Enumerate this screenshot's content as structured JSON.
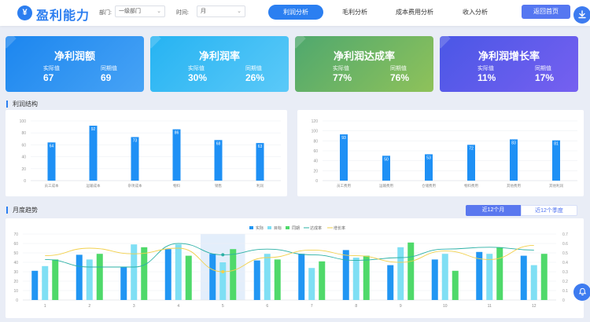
{
  "header": {
    "logo_glyph": "¥",
    "app_title": "盈利能力",
    "dept_label": "部门:",
    "dept_value": "一级部门",
    "time_label": "时间:",
    "time_value": "月",
    "nav": [
      {
        "label": "利润分析",
        "active": true
      },
      {
        "label": "毛利分析",
        "active": false
      },
      {
        "label": "成本费用分析",
        "active": false
      },
      {
        "label": "收入分析",
        "active": false
      }
    ],
    "home_label": "返回首页",
    "download_icon": "download-icon"
  },
  "kpis": [
    {
      "title": "净利润额",
      "actual_label": "实际值",
      "actual": "67",
      "prev_label": "同期值",
      "prev": "69",
      "color_from": "#1c86ef",
      "color_to": "#47a3f5"
    },
    {
      "title": "净利润率",
      "actual_label": "实际值",
      "actual": "30%",
      "prev_label": "同期值",
      "prev": "26%",
      "color_from": "#26b3f2",
      "color_to": "#5bc9f8"
    },
    {
      "title": "净利润达成率",
      "actual_label": "实际值",
      "actual": "77%",
      "prev_label": "同期值",
      "prev": "76%",
      "color_from": "#4fa86e",
      "color_to": "#8fc25a"
    },
    {
      "title": "净利润增长率",
      "actual_label": "实际值",
      "actual": "11%",
      "prev_label": "同期值",
      "prev": "17%",
      "color_from": "#4a57e6",
      "color_to": "#7660f0"
    }
  ],
  "profit_structure": {
    "title": "利润结构"
  },
  "monthly": {
    "title": "月度趋势",
    "tab_active": "近12个月",
    "tab_inactive": "近12个季度"
  },
  "colors": {
    "primary": "#2b7ff1",
    "bar": "#1e90f5",
    "actual": "#2196f3",
    "target": "#7fdff4",
    "prev": "#4fd96a",
    "line_rate": "#2bb0a5",
    "line_growth": "#f2d04b"
  },
  "chart_data": [
    {
      "type": "bar",
      "categories": [
        "员工成本",
        "运输成本",
        "杂项成本",
        "物料",
        "销售",
        "利润"
      ],
      "values": [
        64,
        92,
        73,
        86,
        68,
        63
      ],
      "ylim": [
        0,
        100
      ],
      "yticks": [
        0,
        20,
        40,
        60,
        80,
        100
      ],
      "grid": true
    },
    {
      "type": "bar",
      "categories": [
        "员工费用",
        "运输费用",
        "仓储费用",
        "物料费用",
        "其他费用",
        "其他利润"
      ],
      "values": [
        93,
        50,
        53,
        72,
        83,
        81
      ],
      "ylim": [
        0,
        120
      ],
      "yticks": [
        0,
        20,
        40,
        60,
        80,
        100,
        120
      ],
      "grid": true
    },
    {
      "type": "bar",
      "categories": [
        "1",
        "2",
        "3",
        "4",
        "5",
        "6",
        "7",
        "8",
        "9",
        "10",
        "11",
        "12"
      ],
      "series": [
        {
          "name": "实际",
          "values": [
            31,
            48,
            35,
            54,
            49,
            42,
            49,
            53,
            37,
            43,
            51,
            47
          ]
        },
        {
          "name": "目标",
          "values": [
            36,
            43,
            59,
            59,
            40,
            49,
            34,
            45,
            56,
            49,
            49,
            37
          ]
        },
        {
          "name": "同期",
          "values": [
            43,
            49,
            56,
            47,
            54,
            43,
            41,
            47,
            61,
            31,
            56,
            49
          ]
        }
      ],
      "lines": [
        {
          "name": "达成率",
          "axis": "right",
          "values": [
            0.43,
            0.35,
            0.35,
            0.6,
            0.48,
            0.54,
            0.48,
            0.42,
            0.45,
            0.54,
            0.56,
            0.53
          ]
        },
        {
          "name": "增长率",
          "axis": "right",
          "values": [
            0.47,
            0.55,
            0.49,
            0.55,
            0.3,
            0.45,
            0.53,
            0.47,
            0.4,
            0.52,
            0.43,
            0.58
          ]
        }
      ],
      "ylim": [
        0,
        70
      ],
      "yticks": [
        0,
        10,
        20,
        30,
        40,
        50,
        60,
        70
      ],
      "y2lim": [
        0,
        0.7
      ],
      "y2ticks": [
        0,
        0.1,
        0.2,
        0.3,
        0.4,
        0.5,
        0.6,
        0.7
      ],
      "highlight_category": "5",
      "legend": "top-center",
      "grid": true
    }
  ]
}
